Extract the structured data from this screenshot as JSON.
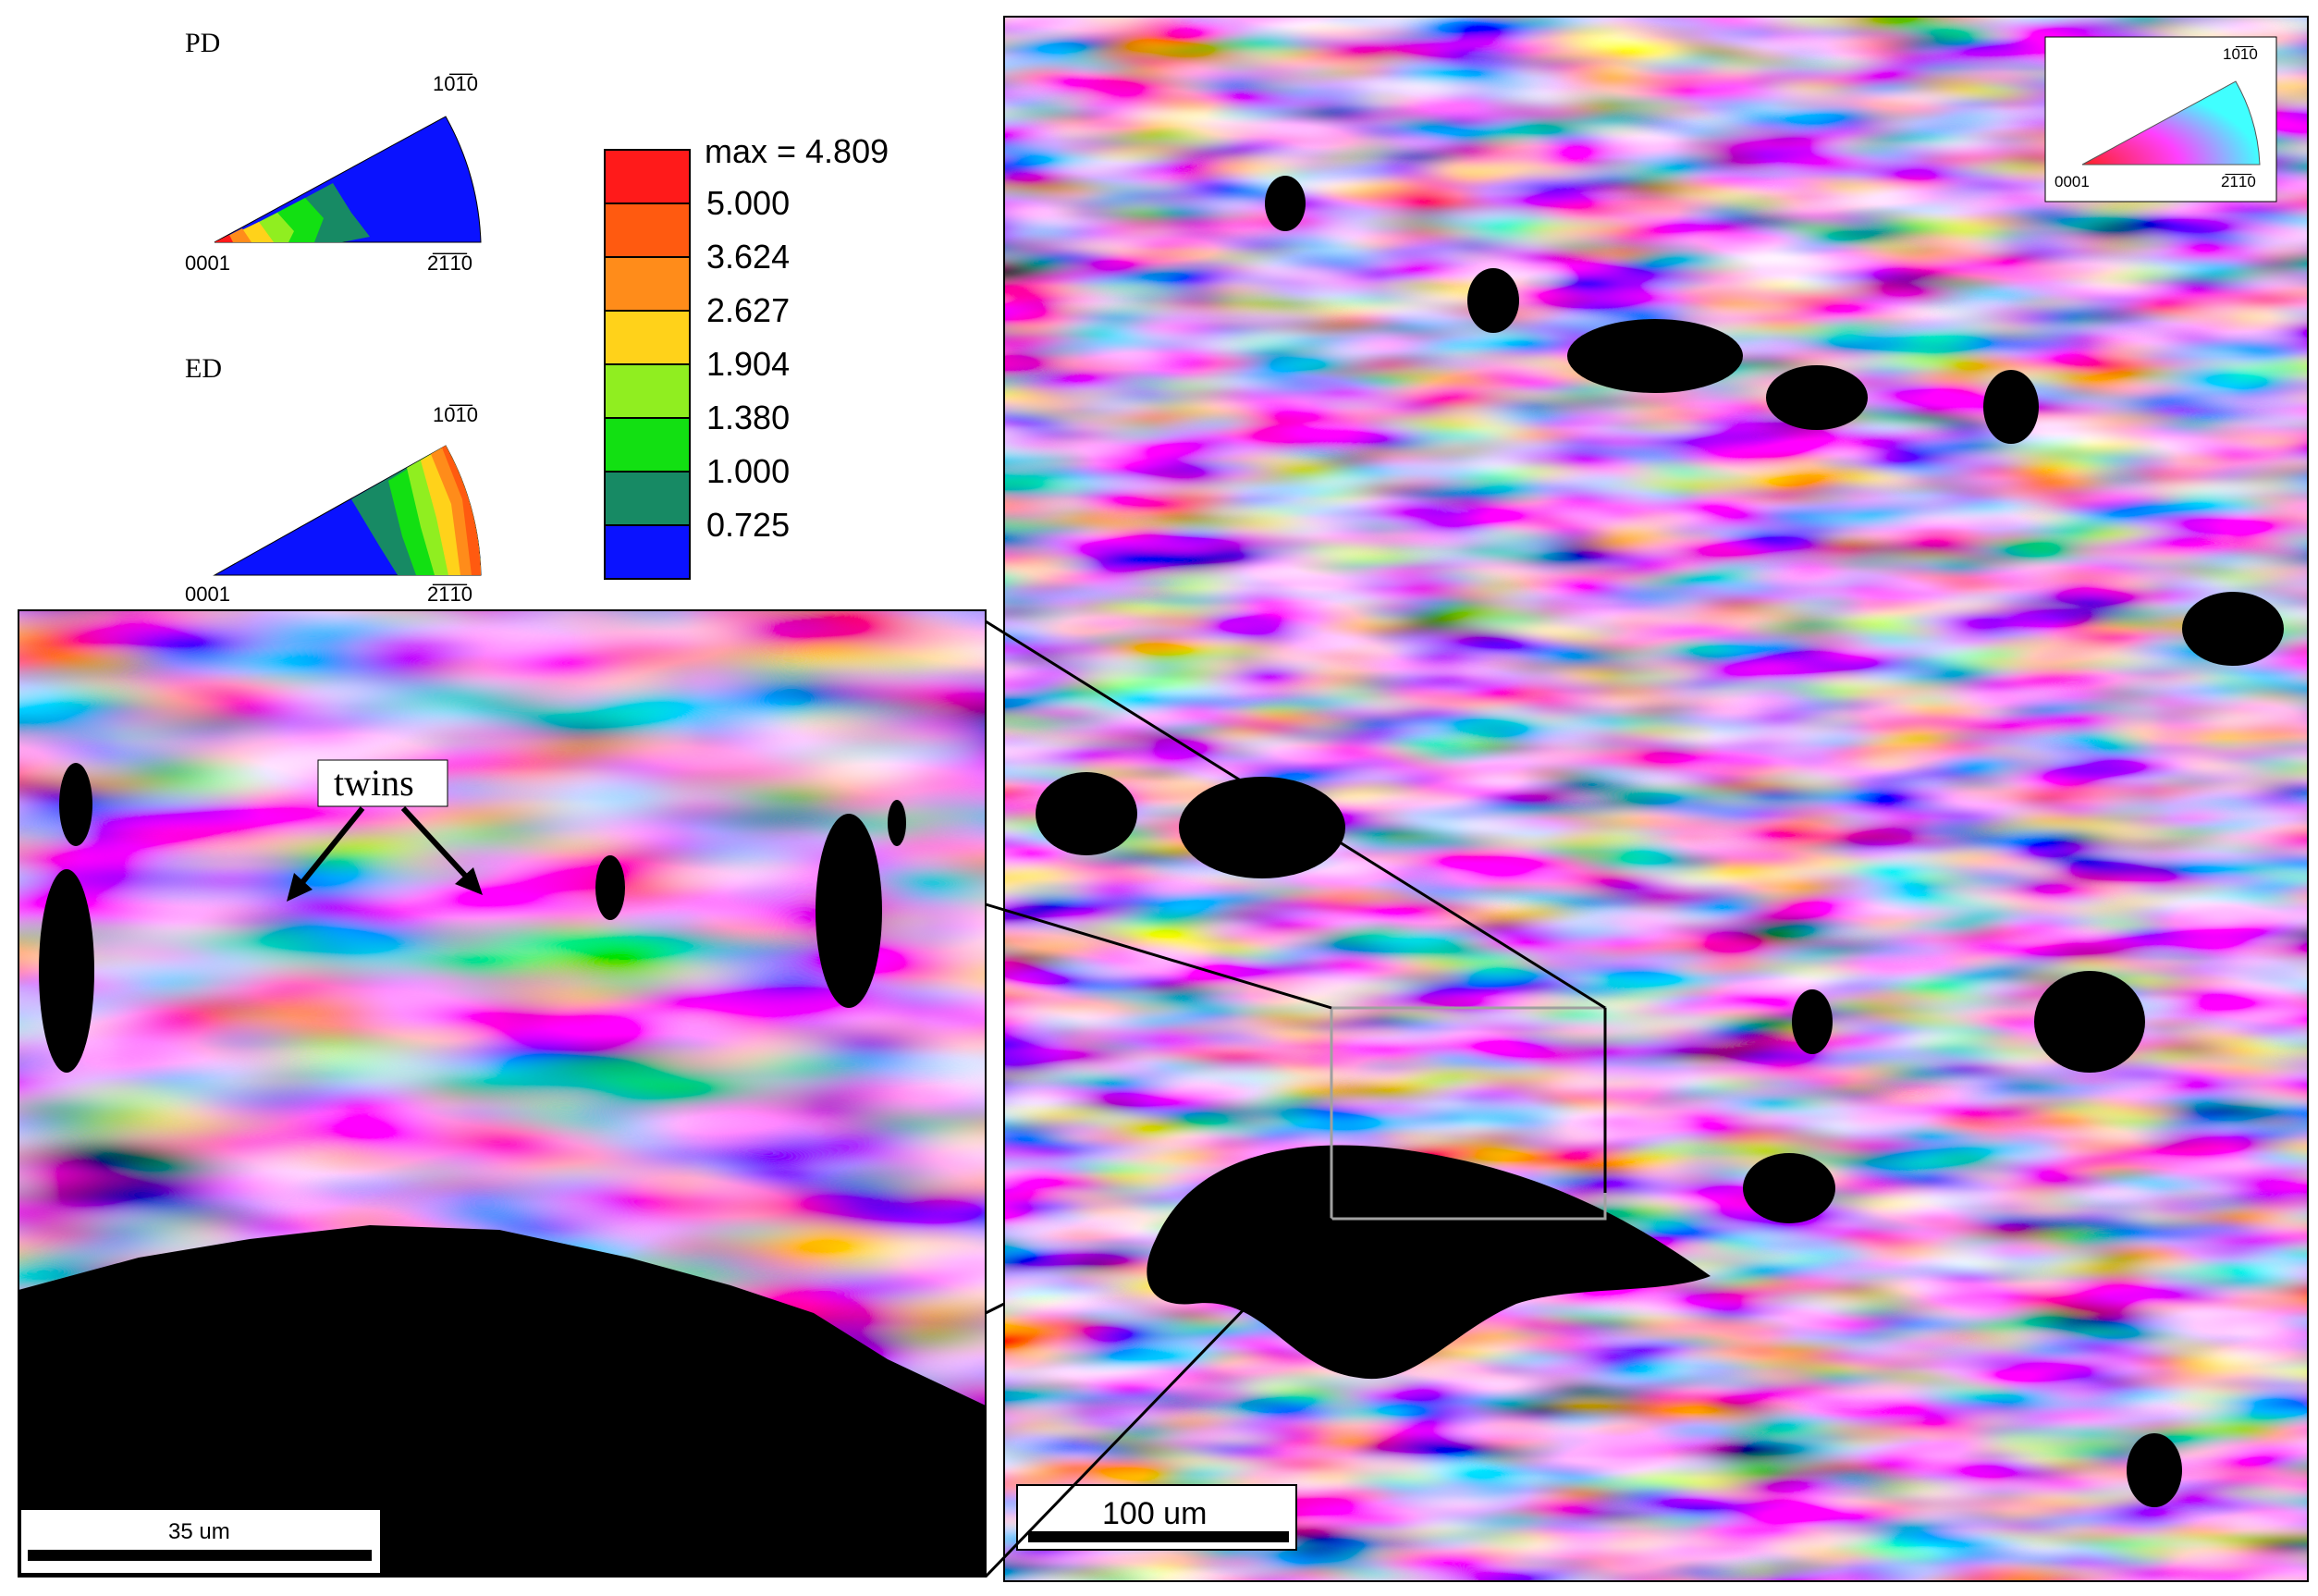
{
  "ipf_pd": {
    "label": "PD",
    "top_label": "10̅1̅0",
    "left_label": "0001",
    "right_label": "2̅1̅1̅0"
  },
  "ipf_ed": {
    "label": "ED",
    "top_label": "10̅1̅0",
    "left_label": "0001",
    "right_label": "2̅1̅1̅0"
  },
  "legend": {
    "max_label": "max = 4.809",
    "levels": [
      "5.000",
      "3.624",
      "2.627",
      "1.904",
      "1.380",
      "1.000",
      "0.725"
    ],
    "colors": [
      "#ff1a1a",
      "#ff5a10",
      "#ff8c1a",
      "#ffd21a",
      "#90ee20",
      "#12e012",
      "#178a64",
      "#0a12ff"
    ]
  },
  "ipf_key": {
    "top_label": "10̅1̅0",
    "left_label": "0001",
    "right_label": "2̅1̅1̅0"
  },
  "left_map": {
    "annotation": "twins",
    "scale_label": "35 um"
  },
  "right_map": {
    "scale_label": "100 um"
  }
}
